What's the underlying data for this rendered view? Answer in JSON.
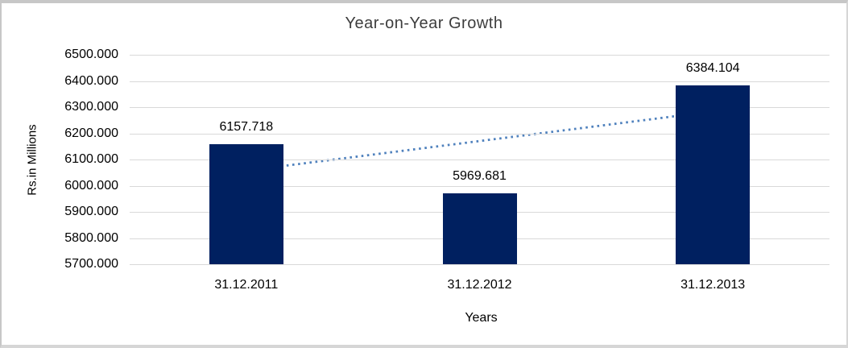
{
  "chart_data": {
    "type": "bar",
    "title": "Year-on-Year Growth",
    "xlabel": "Years",
    "ylabel": "Rs.in Millions",
    "categories": [
      "31.12.2011",
      "31.12.2012",
      "31.12.2013"
    ],
    "values": [
      6157.718,
      5969.681,
      6384.104
    ],
    "data_labels": [
      "6157.718",
      "5969.681",
      "6384.104"
    ],
    "ylim": [
      5700,
      6500
    ],
    "ytick_step": 100,
    "ytick_labels": [
      "6500.000",
      "6400.000",
      "6300.000",
      "6200.000",
      "6100.000",
      "6000.000",
      "5900.000",
      "5800.000",
      "5700.000"
    ],
    "grid": true,
    "legend_position": "none",
    "trendline": {
      "type": "linear",
      "style": "dotted",
      "color": "#4f81bd"
    },
    "colors": {
      "bar": "#002060",
      "gridline": "#d9d9d9",
      "title_text": "#3d3d3d",
      "axis_text": "#000000",
      "background": "#ffffff"
    }
  }
}
